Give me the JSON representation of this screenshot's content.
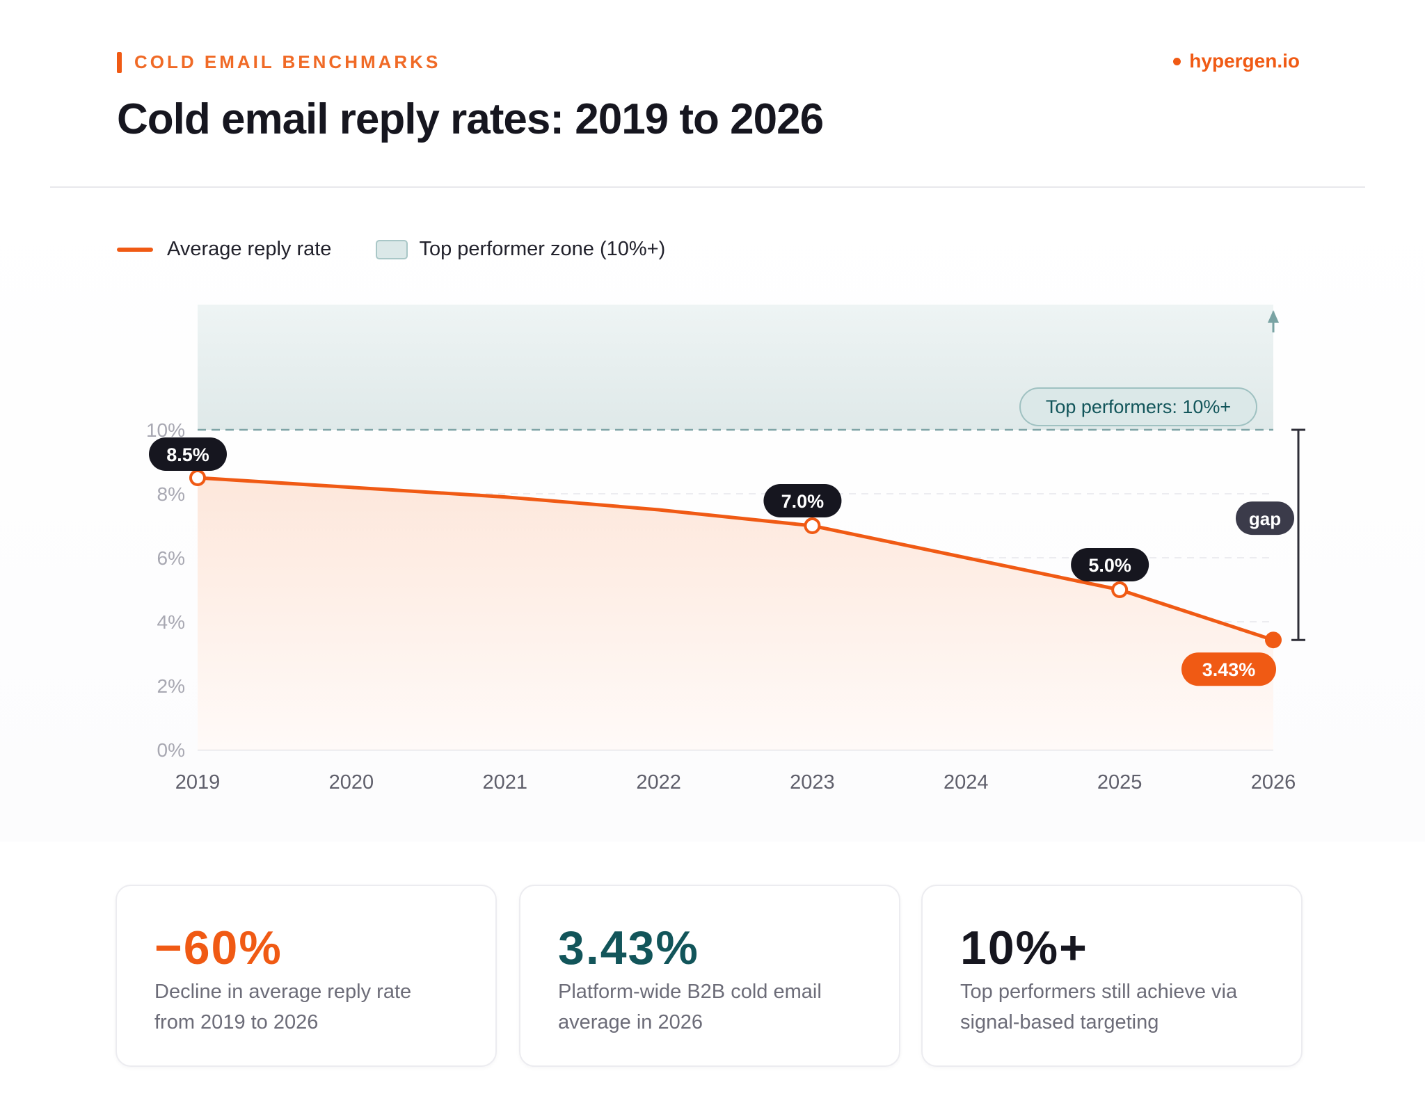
{
  "header": {
    "eyebrow": "COLD EMAIL BENCHMARKS",
    "brand": "hypergen.io",
    "title": "Cold email reply rates: 2019 to 2026"
  },
  "legend": {
    "line_label": "Average reply rate",
    "zone_label": "Top performer zone (10%+)"
  },
  "colors": {
    "accent": "#f05a14",
    "teal": "#12555a",
    "dark": "#16161f",
    "zone": "#dbe8e8"
  },
  "chart_data": {
    "type": "line",
    "x": [
      "2019",
      "2020",
      "2021",
      "2022",
      "2023",
      "2024",
      "2025",
      "2026"
    ],
    "series": [
      {
        "name": "Average reply rate",
        "values": [
          8.5,
          8.2,
          7.9,
          7.5,
          7.0,
          6.0,
          5.0,
          3.43
        ]
      }
    ],
    "y_ticks": [
      "0%",
      "2%",
      "4%",
      "6%",
      "8%",
      "10%"
    ],
    "ylim": [
      0,
      14
    ],
    "grid": true,
    "legend": "top-left",
    "threshold": {
      "value": 10,
      "label": "Top performers: 10%+"
    },
    "gap_label": "gap",
    "point_labels": [
      {
        "x": "2019",
        "label": "8.5%"
      },
      {
        "x": "2023",
        "label": "7.0%"
      },
      {
        "x": "2025",
        "label": "5.0%"
      },
      {
        "x": "2026",
        "label": "3.43%"
      }
    ]
  },
  "stats": [
    {
      "value": "−60%",
      "desc": "Decline in average reply rate from 2019 to 2026",
      "color": "#f05a14"
    },
    {
      "value": "3.43%",
      "desc": "Platform-wide B2B cold email average in 2026",
      "color": "#12555a"
    },
    {
      "value": "10%+",
      "desc": "Top performers still achieve via signal-based targeting",
      "color": "#16161f"
    }
  ]
}
